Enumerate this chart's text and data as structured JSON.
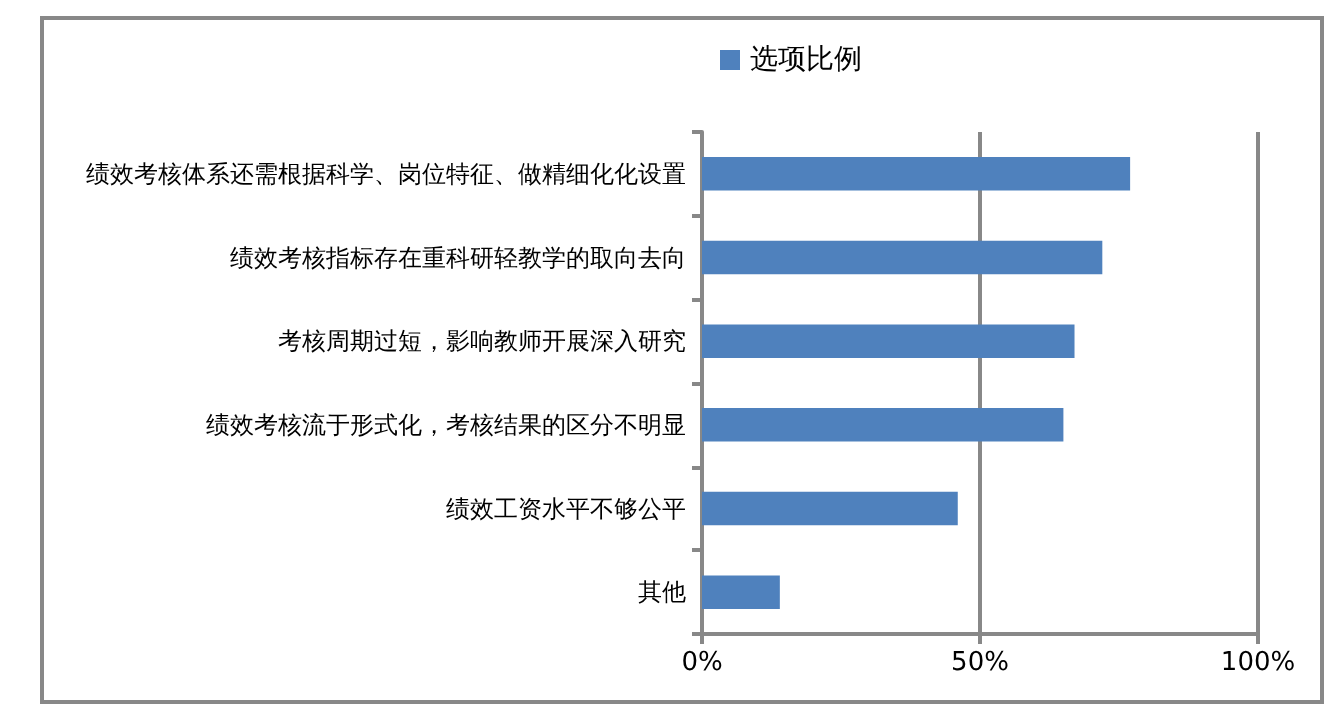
{
  "chart_data": {
    "type": "bar",
    "orientation": "horizontal",
    "categories": [
      "绩效考核体系还需根据科学、岗位特征、做精细化化设置",
      "绩效考核指标存在重科研轻教学的取向去向",
      "考核周期过短，影响教师开展深入研究",
      "绩效考核流于形式化，考核结果的区分不明显",
      "绩效工资水平不够公平",
      "其他"
    ],
    "series": [
      {
        "name": "选项比例",
        "color": "#4f81bd",
        "values": [
          77,
          72,
          67,
          65,
          46,
          14
        ]
      }
    ],
    "xlim": [
      0,
      100
    ],
    "xticks": [
      {
        "value": 0,
        "label": "0%"
      },
      {
        "value": 50,
        "label": "50%"
      },
      {
        "value": 100,
        "label": "100%"
      }
    ],
    "grid": "x",
    "legend": "top"
  }
}
